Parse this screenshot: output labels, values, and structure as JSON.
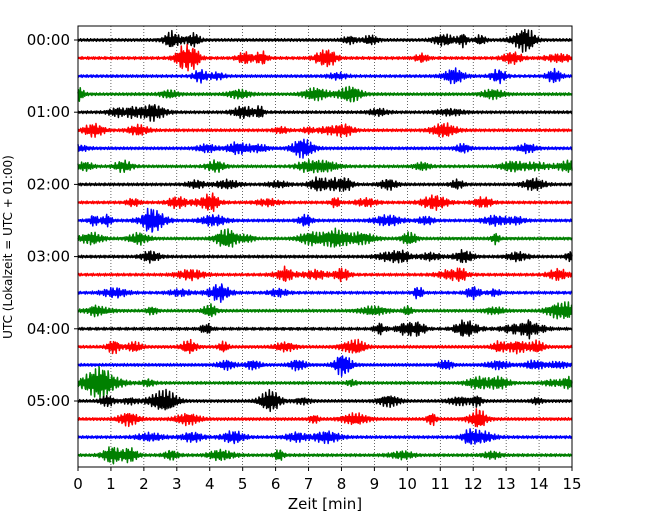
{
  "chart_data": {
    "type": "line",
    "title": "",
    "xlabel": "Zeit  [min]",
    "ylabel": "UTC (Lokalzeit = UTC + 01:00)",
    "xlim": [
      0,
      15
    ],
    "x_ticks": [
      "0",
      "1",
      "2",
      "3",
      "4",
      "5",
      "6",
      "7",
      "8",
      "9",
      "10",
      "11",
      "12",
      "13",
      "14",
      "15"
    ],
    "y_tick_labels": [
      "00:00",
      "01:00",
      "02:00",
      "03:00",
      "04:00",
      "05:00"
    ],
    "trace_interval_minutes": 15,
    "grid": "vertical dotted",
    "trace_colors": [
      "#000000",
      "#ff0000",
      "#0000ff",
      "#008000"
    ],
    "traces": [
      "00:00",
      "00:15",
      "00:30",
      "00:45",
      "01:00",
      "01:15",
      "01:30",
      "01:45",
      "02:00",
      "02:15",
      "02:30",
      "02:45",
      "03:00",
      "03:15",
      "03:30",
      "03:45",
      "04:00",
      "04:15",
      "04:30",
      "04:45",
      "05:00",
      "05:15",
      "05:30",
      "05:45"
    ]
  }
}
